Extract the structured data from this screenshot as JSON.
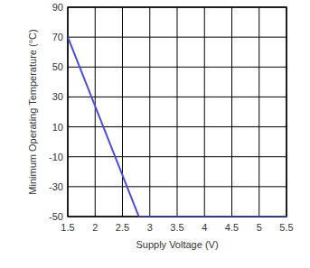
{
  "chart_data": {
    "type": "line",
    "x_label": "Supply Voltage (V)",
    "y_label": "Minimum Operating Temperature (°C)",
    "x": [
      1.5,
      2.8,
      5.5
    ],
    "values": [
      70,
      -50,
      -50
    ],
    "color": "#4a4adf",
    "xlim": [
      1.5,
      5.5
    ],
    "xticks": [
      1.5,
      2,
      2.5,
      3,
      3.5,
      4,
      4.5,
      5,
      5.5
    ],
    "ylim": [
      -50,
      90
    ],
    "yticks": [
      -50,
      -30,
      -10,
      10,
      30,
      50,
      70,
      90
    ],
    "grid": true
  }
}
